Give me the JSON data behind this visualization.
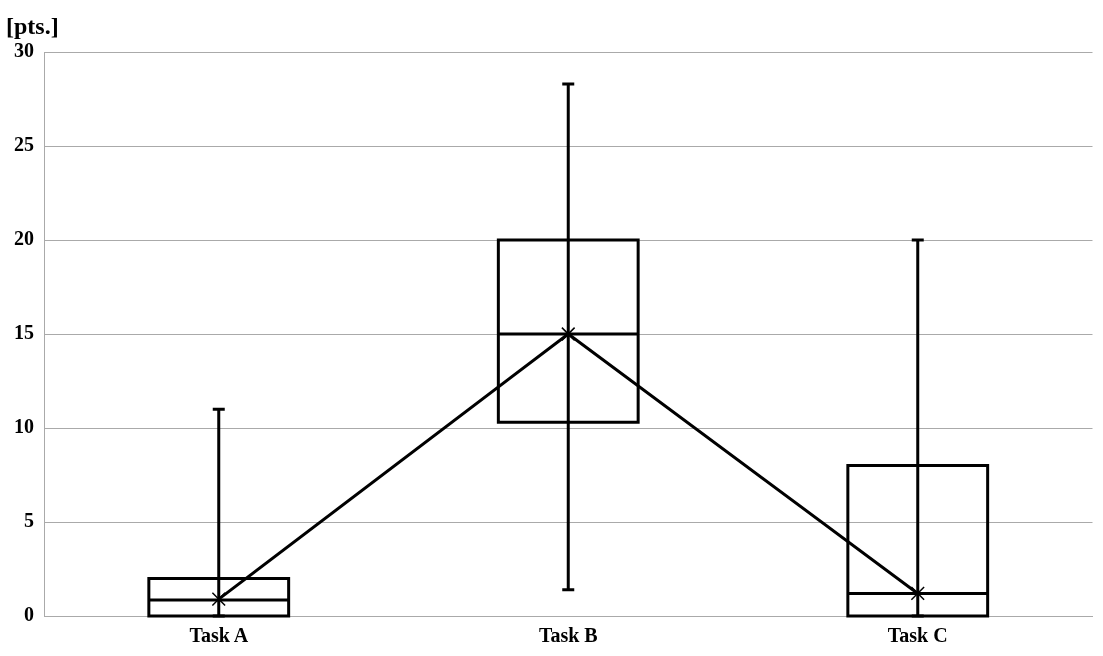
{
  "chart_data": {
    "type": "box",
    "ylabel": "[pts.]",
    "categories": [
      "Task A",
      "Task B",
      "Task C"
    ],
    "series": [
      {
        "color": "#000000",
        "boxes": [
          {
            "low": 0,
            "q1": 0,
            "median": 0.85,
            "q3": 2,
            "high": 11
          },
          {
            "low": 1.4,
            "q1": 10.3,
            "median": 15,
            "q3": 20,
            "high": 28.3
          },
          {
            "low": 0,
            "q1": 0,
            "median": 1.2,
            "q3": 8,
            "high": 20
          }
        ]
      },
      {
        "type": "line",
        "color": "#000000",
        "values": [
          0.9,
          15,
          1.2
        ],
        "marker": "cross",
        "line_style": "solid"
      }
    ],
    "ylim": [
      0,
      30
    ],
    "yticks": [
      0,
      5,
      10,
      15,
      20,
      25,
      30
    ],
    "grid": "y",
    "legend": false
  }
}
